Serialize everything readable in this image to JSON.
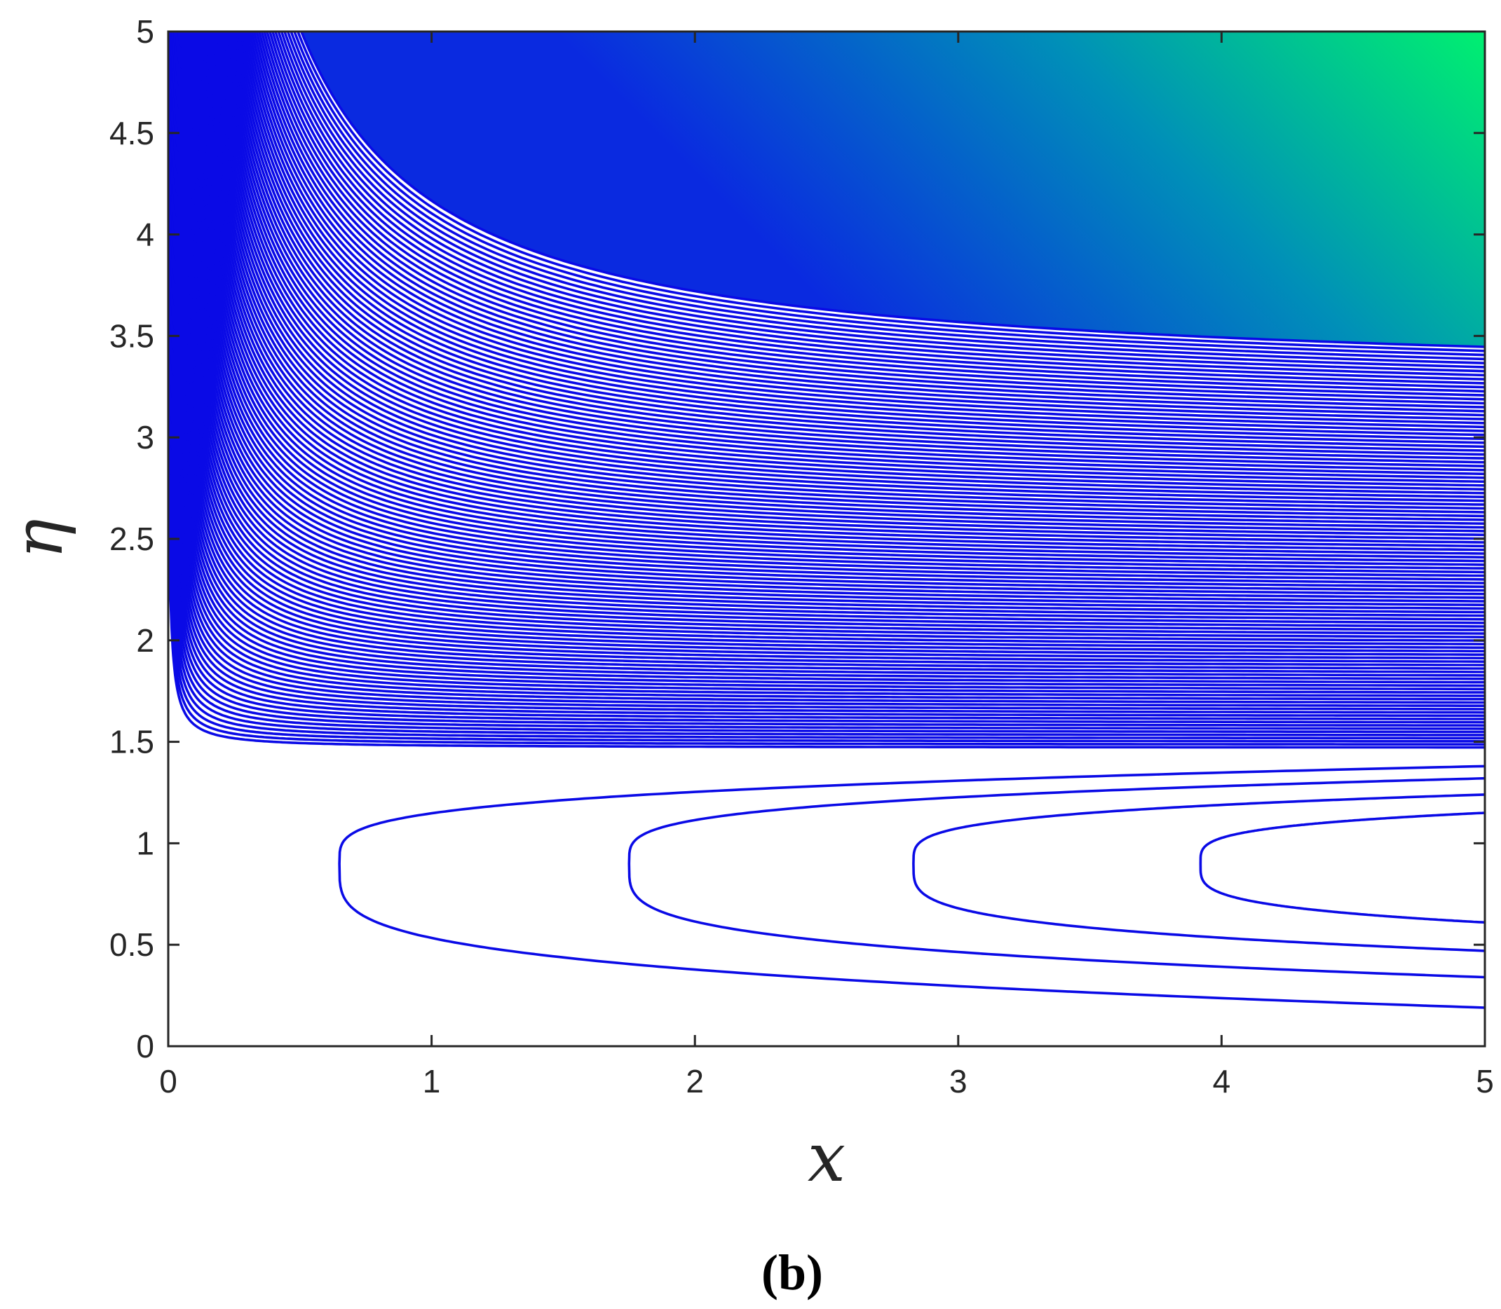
{
  "chart_data": {
    "type": "contour",
    "title": "",
    "xlabel": "x",
    "ylabel": "η",
    "xlim": [
      0,
      5
    ],
    "ylim": [
      0,
      5
    ],
    "x_ticks": [
      "0",
      "1",
      "2",
      "3",
      "4",
      "5"
    ],
    "y_ticks": [
      "0",
      "0.5",
      "1",
      "1.5",
      "2",
      "2.5",
      "3",
      "3.5",
      "4",
      "4.5",
      "5"
    ],
    "grid": false,
    "line_color": "#0a0ae6",
    "separatrix_eta": 1.42,
    "closed_contours": [
      {
        "nose_x": 0.65,
        "nose_eta": 0.9,
        "upper_eta_at_x5": 1.38,
        "lower_eta_at_x5": 0.19
      },
      {
        "nose_x": 1.75,
        "nose_eta": 0.9,
        "upper_eta_at_x5": 1.32,
        "lower_eta_at_x5": 0.34
      },
      {
        "nose_x": 2.83,
        "nose_eta": 0.9,
        "upper_eta_at_x5": 1.24,
        "lower_eta_at_x5": 0.47
      },
      {
        "nose_x": 3.92,
        "nose_eta": 0.9,
        "upper_eta_at_x5": 1.15,
        "lower_eta_at_x5": 0.61
      }
    ],
    "open_contours": {
      "count": 110,
      "asymptote_x": 0,
      "eta_at_x5_first": 1.47,
      "eta_at_x5_last": 5.0
    },
    "fill_colormap": [
      "#0a2ae0",
      "#0090b8",
      "#00f070"
    ],
    "caption": "(b)"
  }
}
